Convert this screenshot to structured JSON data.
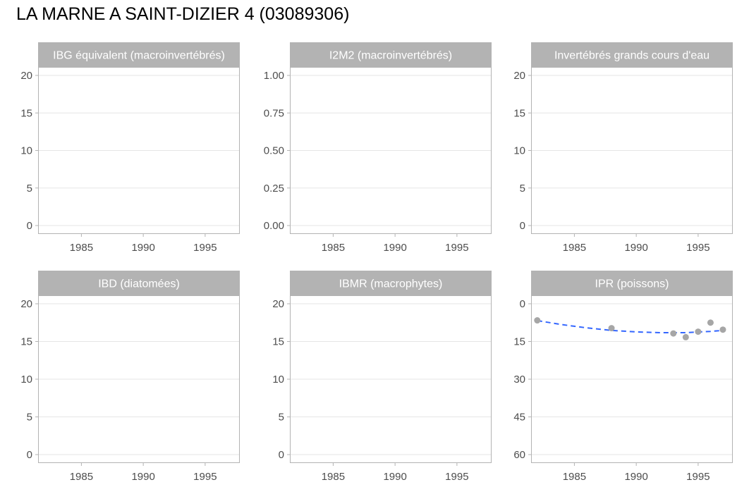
{
  "title": "LA MARNE A SAINT-DIZIER 4 (03089306)",
  "colors": {
    "strip": "#b3b3b3",
    "strip_text": "#ffffff",
    "grid": "#e6e6e6",
    "panel_border": "#b3b3b3",
    "tick_text": "#4d4d4d",
    "point": "#a6a6a6",
    "trend": "#3366ff"
  },
  "chart_data": [
    {
      "type": "scatter",
      "title": "IBG équivalent (macroinvertébrés)",
      "x_ticks": [
        "1985",
        "1990",
        "1995"
      ],
      "y_ticks": [
        "0",
        "5",
        "10",
        "15",
        "20"
      ],
      "xlim": [
        1981.5,
        1997.8
      ],
      "ylim": [
        0,
        20
      ],
      "y_reversed": false,
      "grid": true,
      "points": []
    },
    {
      "type": "scatter",
      "title": "I2M2 (macroinvertébrés)",
      "x_ticks": [
        "1985",
        "1990",
        "1995"
      ],
      "y_ticks": [
        "0.00",
        "0.25",
        "0.50",
        "0.75",
        "1.00"
      ],
      "xlim": [
        1981.5,
        1997.8
      ],
      "ylim": [
        0,
        1
      ],
      "y_reversed": false,
      "grid": true,
      "points": []
    },
    {
      "type": "scatter",
      "title": "Invertébrés grands cours d'eau",
      "x_ticks": [
        "1985",
        "1990",
        "1995"
      ],
      "y_ticks": [
        "0",
        "5",
        "10",
        "15",
        "20"
      ],
      "xlim": [
        1981.5,
        1997.8
      ],
      "ylim": [
        0,
        20
      ],
      "y_reversed": false,
      "grid": true,
      "points": []
    },
    {
      "type": "scatter",
      "title": "IBD (diatomées)",
      "x_ticks": [
        "1985",
        "1990",
        "1995"
      ],
      "y_ticks": [
        "0",
        "5",
        "10",
        "15",
        "20"
      ],
      "xlim": [
        1981.5,
        1997.8
      ],
      "ylim": [
        0,
        20
      ],
      "y_reversed": false,
      "grid": true,
      "points": []
    },
    {
      "type": "scatter",
      "title": "IBMR (macrophytes)",
      "x_ticks": [
        "1985",
        "1990",
        "1995"
      ],
      "y_ticks": [
        "0",
        "5",
        "10",
        "15",
        "20"
      ],
      "xlim": [
        1981.5,
        1997.8
      ],
      "ylim": [
        0,
        20
      ],
      "y_reversed": false,
      "grid": true,
      "points": []
    },
    {
      "type": "scatter",
      "title": "IPR (poissons)",
      "x_ticks": [
        "1985",
        "1990",
        "1995"
      ],
      "y_ticks": [
        "0",
        "15",
        "30",
        "45",
        "60"
      ],
      "xlim": [
        1981.5,
        1997.8
      ],
      "ylim": [
        0,
        60
      ],
      "y_reversed": true,
      "grid": true,
      "points": [
        {
          "x": 1982,
          "y": 6.6
        },
        {
          "x": 1988,
          "y": 9.7
        },
        {
          "x": 1993,
          "y": 11.8
        },
        {
          "x": 1994,
          "y": 13.3
        },
        {
          "x": 1995,
          "y": 11.1
        },
        {
          "x": 1996,
          "y": 7.5
        },
        {
          "x": 1997,
          "y": 10.3
        }
      ],
      "trend": [
        {
          "x": 1982,
          "y": 6.7
        },
        {
          "x": 1984,
          "y": 8.3
        },
        {
          "x": 1986,
          "y": 9.6
        },
        {
          "x": 1988,
          "y": 10.6
        },
        {
          "x": 1990,
          "y": 11.2
        },
        {
          "x": 1992,
          "y": 11.5
        },
        {
          "x": 1994,
          "y": 11.5
        },
        {
          "x": 1996,
          "y": 11.0
        },
        {
          "x": 1997,
          "y": 10.6
        }
      ]
    }
  ]
}
